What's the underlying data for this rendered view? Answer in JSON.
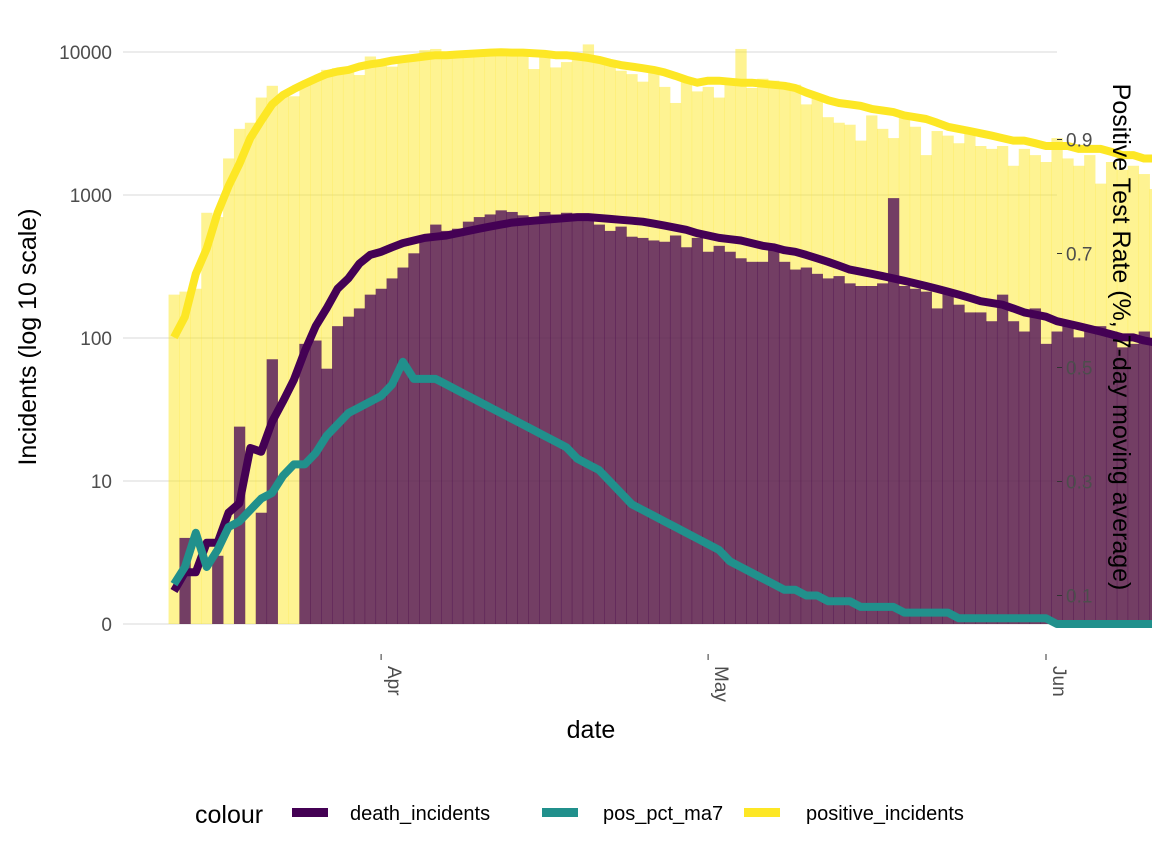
{
  "chart_data": {
    "type": "bar+line",
    "title": "",
    "xlabel": "date",
    "ylabel": "Incidents (log 10 scale)",
    "y2label": "Positive Test Rate (%, 7-day moving average)",
    "x_ticks": [
      "Apr",
      "May",
      "Jun"
    ],
    "y_ticks": [
      "0",
      "10",
      "100",
      "1000",
      "10000"
    ],
    "y2_ticks": [
      "0.1",
      "0.3",
      "0.5",
      "0.7",
      "0.9"
    ],
    "y2lim": [
      0.0,
      1.0
    ],
    "legend": {
      "title": "colour",
      "position": "bottom",
      "items": [
        "death_incidents",
        "pos_pct_ma7",
        "positive_incidents"
      ]
    },
    "colors": {
      "death_incidents": "#440154",
      "pos_pct_ma7": "#21908C",
      "positive_incidents": "#FDE725",
      "grid": "#d9d9d9"
    },
    "start_date": "2020-03-13",
    "bars": {
      "positive_incidents": [
        200,
        210,
        220,
        750,
        700,
        1800,
        2900,
        3200,
        4800,
        5800,
        5000,
        4900,
        6000,
        6600,
        7500,
        7700,
        7400,
        6900,
        9300,
        8000,
        7900,
        8500,
        9000,
        10300,
        10500,
        9300,
        9200,
        9600,
        9800,
        9700,
        10000,
        10300,
        9900,
        7600,
        9600,
        7800,
        8500,
        9200,
        11300,
        9000,
        8800,
        7400,
        7000,
        6200,
        7500,
        5700,
        4400,
        6200,
        5300,
        5700,
        4800,
        6500,
        10500,
        5600,
        6500,
        6300,
        6100,
        5900,
        4300,
        5000,
        3500,
        3200,
        3100,
        2400,
        3600,
        2900,
        2500,
        3700,
        3000,
        1900,
        2800,
        2600,
        2300,
        2900,
        2200,
        2100,
        2200,
        1600,
        2100,
        1900,
        1700,
        2500,
        1800,
        1600,
        1900,
        1200,
        1700,
        1500,
        1600,
        1400,
        1100,
        1500,
        1400,
        1400,
        1200,
        1600
      ],
      "death_incidents": [
        0,
        3,
        0,
        0,
        2,
        0,
        23,
        0,
        5,
        70,
        0,
        0,
        90,
        95,
        60,
        120,
        140,
        160,
        200,
        220,
        260,
        310,
        390,
        500,
        620,
        560,
        580,
        650,
        700,
        730,
        780,
        760,
        720,
        700,
        760,
        730,
        750,
        700,
        700,
        620,
        560,
        600,
        510,
        500,
        480,
        470,
        520,
        430,
        500,
        400,
        440,
        400,
        360,
        340,
        340,
        410,
        340,
        300,
        310,
        280,
        260,
        270,
        240,
        230,
        230,
        240,
        950,
        230,
        220,
        210,
        160,
        210,
        170,
        150,
        150,
        130,
        200,
        130,
        110,
        160,
        90,
        110,
        130,
        100,
        110,
        120,
        110,
        85,
        90,
        110,
        90,
        70,
        85,
        80,
        80,
        58
      ]
    },
    "lines": {
      "positive_ma7": [
        100,
        140,
        280,
        420,
        750,
        1150,
        1650,
        2500,
        3300,
        4300,
        5000,
        5500,
        6000,
        6500,
        7000,
        7300,
        7500,
        7900,
        8200,
        8400,
        8700,
        8900,
        9100,
        9300,
        9500,
        9500,
        9600,
        9700,
        9800,
        9900,
        9950,
        9900,
        9900,
        9800,
        9700,
        9500,
        9500,
        9300,
        9100,
        8800,
        8400,
        8100,
        7900,
        7700,
        7500,
        7200,
        6800,
        6400,
        6100,
        6300,
        6300,
        6200,
        6100,
        6100,
        6000,
        5900,
        5800,
        5600,
        5200,
        4900,
        4600,
        4400,
        4300,
        4200,
        4000,
        3900,
        3800,
        3600,
        3500,
        3400,
        3200,
        3000,
        2900,
        2800,
        2700,
        2600,
        2500,
        2400,
        2400,
        2300,
        2200,
        2200,
        2200,
        2100,
        2100,
        2100,
        2000,
        1900,
        1900,
        1800,
        1800,
        1700,
        1700,
        1600,
        1600,
        1550
      ],
      "death_ma7": [
        0.7,
        1.3,
        1.3,
        2.7,
        2.7,
        5,
        6,
        16,
        15,
        25,
        35,
        50,
        80,
        120,
        160,
        220,
        260,
        330,
        380,
        400,
        430,
        460,
        480,
        500,
        510,
        520,
        540,
        560,
        580,
        600,
        620,
        640,
        650,
        660,
        670,
        680,
        690,
        700,
        700,
        690,
        680,
        670,
        660,
        650,
        630,
        610,
        590,
        570,
        540,
        520,
        500,
        490,
        480,
        460,
        440,
        430,
        410,
        400,
        380,
        360,
        340,
        320,
        300,
        290,
        280,
        270,
        260,
        250,
        240,
        230,
        220,
        210,
        200,
        190,
        180,
        175,
        170,
        160,
        150,
        145,
        140,
        130,
        125,
        120,
        115,
        110,
        105,
        100,
        100,
        95,
        92,
        90,
        88,
        85,
        82,
        80
      ],
      "pos_pct_ma7": [
        0.12,
        0.15,
        0.21,
        0.15,
        0.18,
        0.22,
        0.23,
        0.25,
        0.27,
        0.28,
        0.31,
        0.33,
        0.33,
        0.35,
        0.38,
        0.4,
        0.42,
        0.43,
        0.44,
        0.45,
        0.47,
        0.51,
        0.48,
        0.48,
        0.48,
        0.47,
        0.46,
        0.45,
        0.44,
        0.43,
        0.42,
        0.41,
        0.4,
        0.39,
        0.38,
        0.37,
        0.36,
        0.34,
        0.33,
        0.32,
        0.3,
        0.28,
        0.26,
        0.25,
        0.24,
        0.23,
        0.22,
        0.21,
        0.2,
        0.19,
        0.18,
        0.16,
        0.15,
        0.14,
        0.13,
        0.12,
        0.11,
        0.11,
        0.1,
        0.1,
        0.09,
        0.09,
        0.09,
        0.08,
        0.08,
        0.08,
        0.08,
        0.07,
        0.07,
        0.07,
        0.07,
        0.07,
        0.06,
        0.06,
        0.06,
        0.06,
        0.06,
        0.06,
        0.06,
        0.06,
        0.06,
        0.05,
        0.05,
        0.05,
        0.05,
        0.05,
        0.05,
        0.05,
        0.05,
        0.05,
        0.05,
        0.05,
        0.05,
        0.05,
        0.05,
        0.05
      ]
    }
  }
}
